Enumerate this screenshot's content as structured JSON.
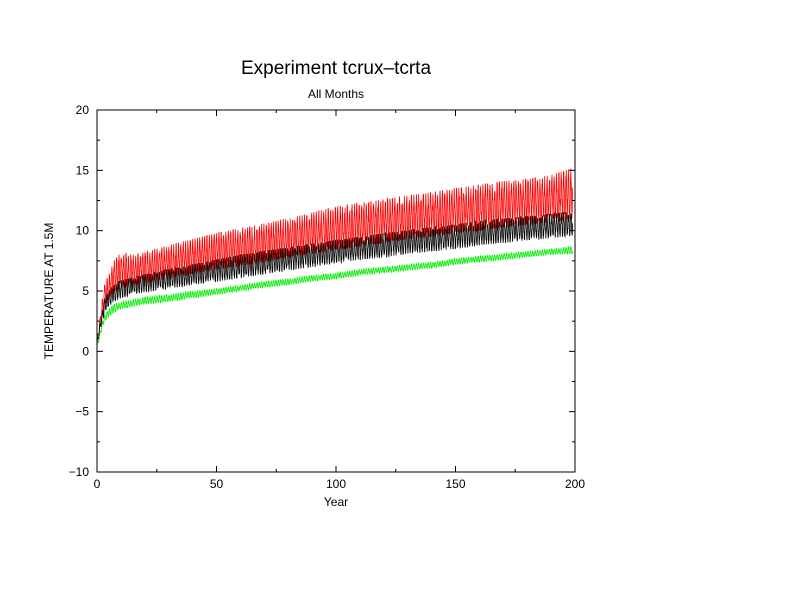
{
  "chart_data": {
    "type": "line",
    "title": "Experiment tcrux–tcrta",
    "subtitle": "All Months",
    "xlabel": "Year",
    "ylabel": "TEMPERATURE AT 1.5M",
    "xlim": [
      0,
      200
    ],
    "ylim": [
      -10,
      20
    ],
    "xticks": [
      0,
      50,
      100,
      150,
      200
    ],
    "yticks": [
      -10,
      -5,
      0,
      5,
      10,
      15,
      20
    ],
    "xtick_labels": [
      "0",
      "50",
      "100",
      "150",
      "200"
    ],
    "ytick_labels": [
      "−10",
      "−5",
      "0",
      "5",
      "10",
      "15",
      "20"
    ],
    "grid": false,
    "legend": "none",
    "series": [
      {
        "color": "#ff0000",
        "x": [
          0,
          1,
          2,
          3,
          5,
          7,
          10,
          15,
          20,
          30,
          40,
          50,
          60,
          70,
          80,
          90,
          100,
          110,
          120,
          130,
          140,
          150,
          160,
          170,
          180,
          190,
          199
        ],
        "y_low": [
          0.5,
          1.5,
          2.5,
          3.5,
          4.2,
          4.8,
          5.2,
          5.4,
          5.6,
          6.0,
          6.4,
          6.8,
          7.1,
          7.4,
          7.8,
          8.1,
          8.4,
          8.7,
          9.0,
          9.3,
          9.5,
          9.8,
          10.0,
          10.3,
          10.5,
          10.7,
          11.0
        ],
        "y_high": [
          1.0,
          2.5,
          4.0,
          5.5,
          6.5,
          7.5,
          8.2,
          8.0,
          8.2,
          8.8,
          9.3,
          9.8,
          10.2,
          10.6,
          11.0,
          11.5,
          12.0,
          12.3,
          12.6,
          12.9,
          13.2,
          13.5,
          13.8,
          14.1,
          14.3,
          14.6,
          15.2
        ]
      },
      {
        "color": "#000000",
        "x": [
          0,
          1,
          2,
          3,
          5,
          7,
          10,
          15,
          20,
          30,
          40,
          50,
          60,
          70,
          80,
          90,
          100,
          110,
          120,
          130,
          140,
          150,
          160,
          170,
          180,
          190,
          199
        ],
        "y_low": [
          0.4,
          1.3,
          2.2,
          3.0,
          3.7,
          4.1,
          4.4,
          4.7,
          4.9,
          5.2,
          5.5,
          5.8,
          6.1,
          6.4,
          6.7,
          7.0,
          7.3,
          7.6,
          7.8,
          8.1,
          8.3,
          8.5,
          8.8,
          9.0,
          9.2,
          9.4,
          9.6
        ],
        "y_high": [
          0.8,
          2.0,
          3.2,
          4.2,
          5.0,
          5.5,
          5.9,
          6.1,
          6.4,
          6.8,
          7.2,
          7.6,
          8.0,
          8.3,
          8.6,
          8.9,
          9.2,
          9.5,
          9.8,
          10.0,
          10.3,
          10.5,
          10.8,
          11.0,
          11.2,
          11.4,
          11.6
        ]
      },
      {
        "color": "#00ee00",
        "x": [
          0,
          1,
          2,
          3,
          5,
          7,
          10,
          15,
          20,
          30,
          40,
          50,
          60,
          70,
          80,
          90,
          100,
          110,
          120,
          130,
          140,
          150,
          160,
          170,
          180,
          190,
          199
        ],
        "y_low": [
          0.3,
          1.0,
          1.8,
          2.4,
          2.9,
          3.2,
          3.5,
          3.7,
          3.9,
          4.1,
          4.4,
          4.7,
          5.0,
          5.3,
          5.5,
          5.8,
          6.0,
          6.3,
          6.5,
          6.7,
          6.9,
          7.2,
          7.4,
          7.6,
          7.8,
          8.0,
          8.1
        ],
        "y_high": [
          0.5,
          1.4,
          2.3,
          3.0,
          3.5,
          3.9,
          4.1,
          4.3,
          4.5,
          4.7,
          5.0,
          5.2,
          5.5,
          5.8,
          6.0,
          6.3,
          6.5,
          6.8,
          7.0,
          7.2,
          7.4,
          7.7,
          7.9,
          8.1,
          8.3,
          8.5,
          8.7
        ]
      }
    ]
  }
}
